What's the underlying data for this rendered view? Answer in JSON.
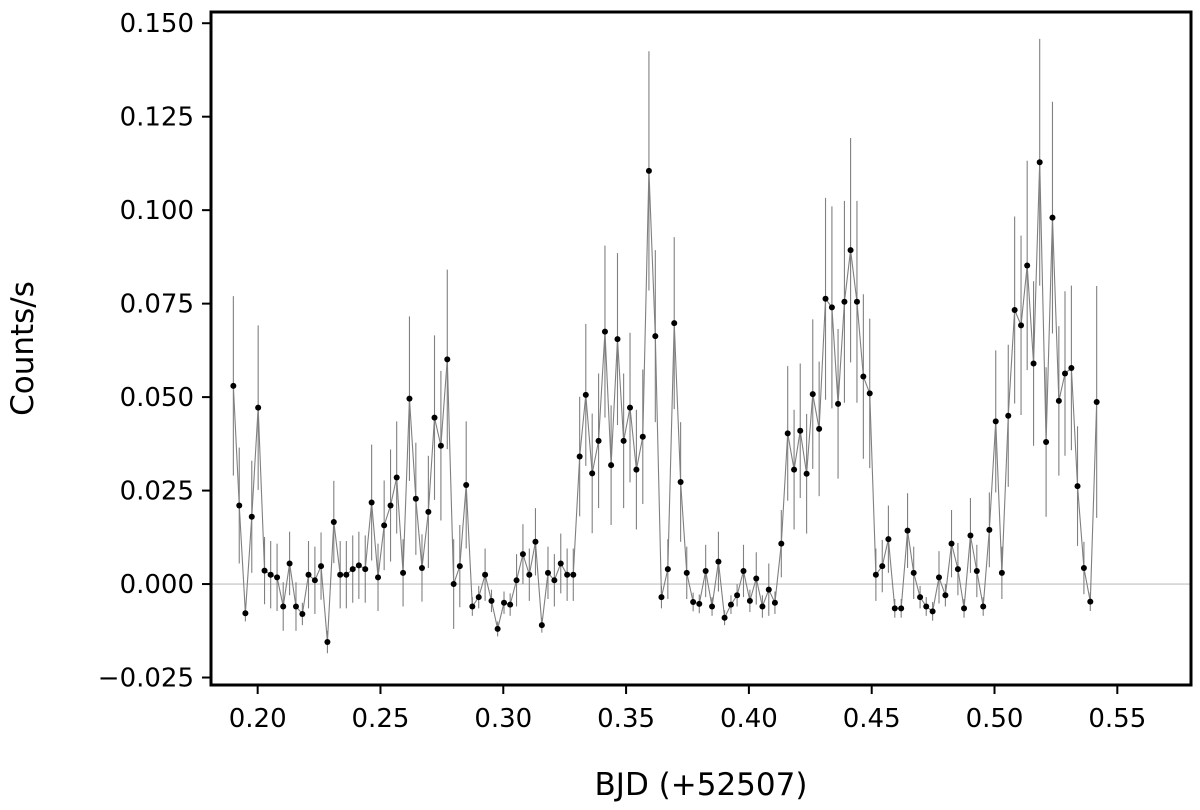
{
  "chart_data": {
    "type": "scatter",
    "title": "",
    "xlabel": "BJD (+52507)",
    "ylabel": "Counts/s",
    "xlim": [
      0.181,
      0.58
    ],
    "ylim": [
      -0.027,
      0.153
    ],
    "xticks": [
      0.2,
      0.25,
      0.3,
      0.35,
      0.4,
      0.45,
      0.5,
      0.55
    ],
    "xtick_labels": [
      "0.20",
      "0.25",
      "0.30",
      "0.35",
      "0.40",
      "0.45",
      "0.50",
      "0.55"
    ],
    "yticks": [
      -0.025,
      0.0,
      0.025,
      0.05,
      0.075,
      0.1,
      0.125,
      0.15
    ],
    "ytick_labels": [
      "−0.025",
      "0.000",
      "0.025",
      "0.050",
      "0.075",
      "0.100",
      "0.125",
      "0.150"
    ],
    "grid": false,
    "reference_line": 0.0,
    "colors": {
      "points": "#000000",
      "connector": "#7f7f7f",
      "error_bars": "#808080",
      "zero_line": "#bfbfbf",
      "frame": "#000000"
    },
    "series": [
      {
        "connected": true,
        "points": [
          {
            "x": 0.1901,
            "y": 0.053,
            "err": 0.024
          },
          {
            "x": 0.1925,
            "y": 0.021,
            "err": 0.0155
          },
          {
            "x": 0.195,
            "y": -0.0078,
            "err": 0.0022
          },
          {
            "x": 0.1976,
            "y": 0.018,
            "err": 0.015
          },
          {
            "x": 0.2002,
            "y": 0.0472,
            "err": 0.022
          },
          {
            "x": 0.2028,
            "y": 0.0036,
            "err": 0.009
          },
          {
            "x": 0.2053,
            "y": 0.0025,
            "err": 0.009
          },
          {
            "x": 0.2079,
            "y": 0.0018,
            "err": 0.009
          },
          {
            "x": 0.2104,
            "y": -0.006,
            "err": 0.0065
          },
          {
            "x": 0.213,
            "y": 0.0055,
            "err": 0.0085
          },
          {
            "x": 0.2156,
            "y": -0.006,
            "err": 0.0065
          },
          {
            "x": 0.2182,
            "y": -0.008,
            "err": 0.003
          },
          {
            "x": 0.2207,
            "y": 0.0025,
            "err": 0.009
          },
          {
            "x": 0.2233,
            "y": 0.001,
            "err": 0.009
          },
          {
            "x": 0.2258,
            "y": 0.0048,
            "err": 0.009
          },
          {
            "x": 0.2284,
            "y": -0.0155,
            "err": 0.003
          },
          {
            "x": 0.231,
            "y": 0.0166,
            "err": 0.011
          },
          {
            "x": 0.2336,
            "y": 0.0025,
            "err": 0.009
          },
          {
            "x": 0.2361,
            "y": 0.0025,
            "err": 0.009
          },
          {
            "x": 0.2387,
            "y": 0.004,
            "err": 0.009
          },
          {
            "x": 0.2412,
            "y": 0.005,
            "err": 0.009
          },
          {
            "x": 0.2438,
            "y": 0.004,
            "err": 0.009
          },
          {
            "x": 0.2464,
            "y": 0.0218,
            "err": 0.0155
          },
          {
            "x": 0.249,
            "y": 0.0018,
            "err": 0.009
          },
          {
            "x": 0.2515,
            "y": 0.0157,
            "err": 0.012
          },
          {
            "x": 0.2541,
            "y": 0.021,
            "err": 0.015
          },
          {
            "x": 0.2566,
            "y": 0.0285,
            "err": 0.015
          },
          {
            "x": 0.2592,
            "y": 0.003,
            "err": 0.009
          },
          {
            "x": 0.2618,
            "y": 0.0496,
            "err": 0.022
          },
          {
            "x": 0.2644,
            "y": 0.0228,
            "err": 0.015
          },
          {
            "x": 0.2669,
            "y": 0.0043,
            "err": 0.009
          },
          {
            "x": 0.2695,
            "y": 0.0193,
            "err": 0.015
          },
          {
            "x": 0.272,
            "y": 0.0445,
            "err": 0.022
          },
          {
            "x": 0.2746,
            "y": 0.037,
            "err": 0.02
          },
          {
            "x": 0.2772,
            "y": 0.0601,
            "err": 0.024
          },
          {
            "x": 0.2798,
            "y": 0.0,
            "err": 0.012
          },
          {
            "x": 0.2823,
            "y": 0.0048,
            "err": 0.011
          },
          {
            "x": 0.2849,
            "y": 0.0265,
            "err": 0.017
          },
          {
            "x": 0.2874,
            "y": -0.006,
            "err": 0.0025
          },
          {
            "x": 0.29,
            "y": -0.0035,
            "err": 0.003
          },
          {
            "x": 0.2926,
            "y": 0.0025,
            "err": 0.007
          },
          {
            "x": 0.2952,
            "y": -0.0045,
            "err": 0.003
          },
          {
            "x": 0.2977,
            "y": -0.012,
            "err": 0.002
          },
          {
            "x": 0.3003,
            "y": -0.005,
            "err": 0.003
          },
          {
            "x": 0.3028,
            "y": -0.0055,
            "err": 0.003
          },
          {
            "x": 0.3054,
            "y": 0.001,
            "err": 0.007
          },
          {
            "x": 0.308,
            "y": 0.008,
            "err": 0.008
          },
          {
            "x": 0.3106,
            "y": 0.0025,
            "err": 0.007
          },
          {
            "x": 0.3131,
            "y": 0.0113,
            "err": 0.009
          },
          {
            "x": 0.3157,
            "y": -0.011,
            "err": 0.002
          },
          {
            "x": 0.3182,
            "y": 0.003,
            "err": 0.007
          },
          {
            "x": 0.3208,
            "y": 0.001,
            "err": 0.007
          },
          {
            "x": 0.3234,
            "y": 0.0055,
            "err": 0.008
          },
          {
            "x": 0.326,
            "y": 0.0025,
            "err": 0.007
          },
          {
            "x": 0.3285,
            "y": 0.0025,
            "err": 0.007
          },
          {
            "x": 0.3311,
            "y": 0.0341,
            "err": 0.016
          },
          {
            "x": 0.3336,
            "y": 0.0506,
            "err": 0.019
          },
          {
            "x": 0.3362,
            "y": 0.0296,
            "err": 0.016
          },
          {
            "x": 0.3388,
            "y": 0.0383,
            "err": 0.018
          },
          {
            "x": 0.3414,
            "y": 0.0675,
            "err": 0.023
          },
          {
            "x": 0.3439,
            "y": 0.0318,
            "err": 0.016
          },
          {
            "x": 0.3465,
            "y": 0.0655,
            "err": 0.023
          },
          {
            "x": 0.349,
            "y": 0.0383,
            "err": 0.018
          },
          {
            "x": 0.3516,
            "y": 0.0472,
            "err": 0.02
          },
          {
            "x": 0.3542,
            "y": 0.0306,
            "err": 0.016
          },
          {
            "x": 0.3568,
            "y": 0.0394,
            "err": 0.018
          },
          {
            "x": 0.3593,
            "y": 0.1105,
            "err": 0.032
          },
          {
            "x": 0.3619,
            "y": 0.0663,
            "err": 0.023
          },
          {
            "x": 0.3644,
            "y": -0.0035,
            "err": 0.003
          },
          {
            "x": 0.367,
            "y": 0.004,
            "err": 0.008
          },
          {
            "x": 0.3696,
            "y": 0.0698,
            "err": 0.023
          },
          {
            "x": 0.3722,
            "y": 0.0273,
            "err": 0.016
          },
          {
            "x": 0.3747,
            "y": 0.003,
            "err": 0.007
          },
          {
            "x": 0.3773,
            "y": -0.0048,
            "err": 0.0025
          },
          {
            "x": 0.3798,
            "y": -0.0053,
            "err": 0.0025
          },
          {
            "x": 0.3824,
            "y": 0.0035,
            "err": 0.007
          },
          {
            "x": 0.385,
            "y": -0.006,
            "err": 0.0025
          },
          {
            "x": 0.3876,
            "y": 0.006,
            "err": 0.008
          },
          {
            "x": 0.3901,
            "y": -0.009,
            "err": 0.002
          },
          {
            "x": 0.3927,
            "y": -0.0055,
            "err": 0.0025
          },
          {
            "x": 0.3952,
            "y": -0.003,
            "err": 0.003
          },
          {
            "x": 0.3978,
            "y": 0.0035,
            "err": 0.007
          },
          {
            "x": 0.4004,
            "y": -0.0045,
            "err": 0.003
          },
          {
            "x": 0.403,
            "y": 0.0015,
            "err": 0.007
          },
          {
            "x": 0.4055,
            "y": -0.006,
            "err": 0.003
          },
          {
            "x": 0.4081,
            "y": -0.0015,
            "err": 0.007
          },
          {
            "x": 0.4106,
            "y": -0.005,
            "err": 0.003
          },
          {
            "x": 0.4132,
            "y": 0.0108,
            "err": 0.009
          },
          {
            "x": 0.4158,
            "y": 0.0403,
            "err": 0.018
          },
          {
            "x": 0.4184,
            "y": 0.0306,
            "err": 0.016
          },
          {
            "x": 0.4209,
            "y": 0.041,
            "err": 0.018
          },
          {
            "x": 0.4235,
            "y": 0.0295,
            "err": 0.016
          },
          {
            "x": 0.426,
            "y": 0.0508,
            "err": 0.02
          },
          {
            "x": 0.4286,
            "y": 0.0415,
            "err": 0.018
          },
          {
            "x": 0.4312,
            "y": 0.0763,
            "err": 0.027
          },
          {
            "x": 0.4338,
            "y": 0.074,
            "err": 0.027
          },
          {
            "x": 0.4363,
            "y": 0.0482,
            "err": 0.02
          },
          {
            "x": 0.4389,
            "y": 0.0755,
            "err": 0.027
          },
          {
            "x": 0.4414,
            "y": 0.0893,
            "err": 0.03
          },
          {
            "x": 0.444,
            "y": 0.0755,
            "err": 0.027
          },
          {
            "x": 0.4466,
            "y": 0.0555,
            "err": 0.022
          },
          {
            "x": 0.4492,
            "y": 0.051,
            "err": 0.02
          },
          {
            "x": 0.4517,
            "y": 0.0025,
            "err": 0.007
          },
          {
            "x": 0.4543,
            "y": 0.0048,
            "err": 0.007
          },
          {
            "x": 0.4568,
            "y": 0.012,
            "err": 0.009
          },
          {
            "x": 0.4594,
            "y": -0.0065,
            "err": 0.0025
          },
          {
            "x": 0.462,
            "y": -0.0065,
            "err": 0.0025
          },
          {
            "x": 0.4646,
            "y": 0.0143,
            "err": 0.01
          },
          {
            "x": 0.4671,
            "y": 0.003,
            "err": 0.007
          },
          {
            "x": 0.4697,
            "y": -0.0035,
            "err": 0.003
          },
          {
            "x": 0.4722,
            "y": -0.006,
            "err": 0.0025
          },
          {
            "x": 0.4748,
            "y": -0.0073,
            "err": 0.0025
          },
          {
            "x": 0.4774,
            "y": 0.0018,
            "err": 0.007
          },
          {
            "x": 0.48,
            "y": -0.003,
            "err": 0.003
          },
          {
            "x": 0.4825,
            "y": 0.0108,
            "err": 0.009
          },
          {
            "x": 0.4851,
            "y": 0.004,
            "err": 0.007
          },
          {
            "x": 0.4876,
            "y": -0.0065,
            "err": 0.0025
          },
          {
            "x": 0.4902,
            "y": 0.013,
            "err": 0.01
          },
          {
            "x": 0.4928,
            "y": 0.0035,
            "err": 0.007
          },
          {
            "x": 0.4954,
            "y": -0.006,
            "err": 0.0025
          },
          {
            "x": 0.4979,
            "y": 0.0145,
            "err": 0.01
          },
          {
            "x": 0.5005,
            "y": 0.0435,
            "err": 0.019
          },
          {
            "x": 0.503,
            "y": 0.003,
            "err": 0.007
          },
          {
            "x": 0.5056,
            "y": 0.045,
            "err": 0.019
          },
          {
            "x": 0.5082,
            "y": 0.0733,
            "err": 0.025
          },
          {
            "x": 0.5108,
            "y": 0.0692,
            "err": 0.024
          },
          {
            "x": 0.5133,
            "y": 0.0852,
            "err": 0.028
          },
          {
            "x": 0.5159,
            "y": 0.059,
            "err": 0.022
          },
          {
            "x": 0.5184,
            "y": 0.1128,
            "err": 0.033
          },
          {
            "x": 0.521,
            "y": 0.038,
            "err": 0.02
          },
          {
            "x": 0.5236,
            "y": 0.098,
            "err": 0.031
          },
          {
            "x": 0.5262,
            "y": 0.049,
            "err": 0.02
          },
          {
            "x": 0.5287,
            "y": 0.0563,
            "err": 0.022
          },
          {
            "x": 0.5313,
            "y": 0.0578,
            "err": 0.022
          },
          {
            "x": 0.5338,
            "y": 0.0262,
            "err": 0.016
          },
          {
            "x": 0.5364,
            "y": 0.0043,
            "err": 0.007
          },
          {
            "x": 0.539,
            "y": -0.0047,
            "err": 0.0025
          },
          {
            "x": 0.5416,
            "y": 0.0487,
            "err": 0.031
          }
        ]
      }
    ]
  }
}
